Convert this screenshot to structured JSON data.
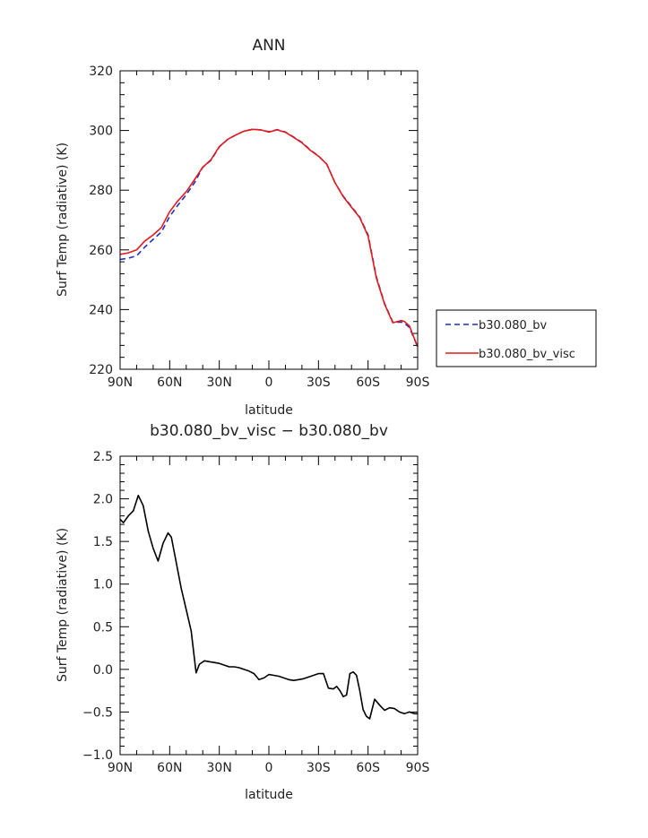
{
  "chart_data": [
    {
      "type": "line",
      "title": "ANN",
      "xlabel": "latitude",
      "ylabel": "Surf Temp (radiative) (K)",
      "xlim": [
        90,
        -90
      ],
      "ylim": [
        220,
        320
      ],
      "x_ticks": [
        90,
        60,
        30,
        0,
        -30,
        -60,
        -90
      ],
      "x_tick_labels": [
        "90N",
        "60N",
        "30N",
        "0",
        "30S",
        "60S",
        "90S"
      ],
      "y_ticks": [
        220,
        240,
        260,
        280,
        300,
        320
      ],
      "y_tick_labels": [
        "220",
        "240",
        "260",
        "280",
        "300",
        "320"
      ],
      "legend_position": "right",
      "series": [
        {
          "name": "b30.080_bv",
          "color": "#1f2fbf",
          "dash": "dashed",
          "x": [
            90,
            85,
            80,
            75,
            70,
            65,
            60,
            55,
            50,
            45,
            40,
            35,
            30,
            25,
            20,
            15,
            10,
            5,
            0,
            -5,
            -10,
            -15,
            -20,
            -25,
            -30,
            -35,
            -40,
            -45,
            -50,
            -55,
            -60,
            -65,
            -70,
            -75,
            -80,
            -82,
            -85,
            -90
          ],
          "y": [
            256.8,
            257.2,
            258.0,
            261.0,
            263.5,
            266.0,
            271.2,
            275.0,
            278.5,
            282.5,
            287.7,
            290.0,
            294.5,
            297.0,
            298.5,
            299.8,
            300.4,
            300.2,
            299.6,
            300.3,
            299.5,
            297.8,
            296.0,
            293.5,
            291.5,
            288.7,
            282.5,
            278.0,
            274.5,
            271.0,
            265.0,
            251.0,
            242.0,
            235.8,
            235.8,
            235.5,
            234.0,
            227.5
          ]
        },
        {
          "name": "b30.080_bv_visc",
          "color": "#e41a1c",
          "dash": "solid",
          "x": [
            90,
            85,
            80,
            75,
            70,
            65,
            60,
            55,
            50,
            45,
            40,
            35,
            30,
            25,
            20,
            15,
            10,
            5,
            0,
            -5,
            -10,
            -15,
            -20,
            -25,
            -30,
            -35,
            -40,
            -45,
            -50,
            -55,
            -60,
            -65,
            -70,
            -75,
            -80,
            -82,
            -85,
            -90
          ],
          "y": [
            258.5,
            259.0,
            260.0,
            263.0,
            265.0,
            267.5,
            272.8,
            276.5,
            279.5,
            283.5,
            287.7,
            290.2,
            294.6,
            297.0,
            298.5,
            299.8,
            300.4,
            300.2,
            299.5,
            300.2,
            299.4,
            297.7,
            295.9,
            293.4,
            291.4,
            288.7,
            282.5,
            277.8,
            274.3,
            270.8,
            264.6,
            250.6,
            241.8,
            235.6,
            236.3,
            236.0,
            234.5,
            227.5
          ]
        }
      ]
    },
    {
      "type": "line",
      "title": "b30.080_bv_visc − b30.080_bv",
      "xlabel": "latitude",
      "ylabel": "Surf Temp (radiative) (K)",
      "xlim": [
        90,
        -90
      ],
      "ylim": [
        -1.0,
        2.5
      ],
      "x_ticks": [
        90,
        60,
        30,
        0,
        -30,
        -60,
        -90
      ],
      "x_tick_labels": [
        "90N",
        "60N",
        "30N",
        "0",
        "30S",
        "60S",
        "90S"
      ],
      "y_ticks": [
        -1.0,
        -0.5,
        0.0,
        0.5,
        1.0,
        1.5,
        2.0,
        2.5
      ],
      "y_tick_labels": [
        "−1.0",
        "−0.5",
        "0.0",
        "0.5",
        "1.0",
        "1.5",
        "2.0",
        "2.5"
      ],
      "series": [
        {
          "color": "#000000",
          "dash": "solid",
          "x": [
            90,
            88,
            85,
            82,
            79,
            76,
            73,
            70,
            67,
            64,
            61,
            59,
            56,
            53,
            50,
            47,
            44,
            42,
            39,
            36,
            33,
            30,
            27,
            24,
            21,
            18,
            15,
            12,
            9,
            6,
            3,
            0,
            -3,
            -6,
            -9,
            -12,
            -15,
            -18,
            -21,
            -24,
            -27,
            -30,
            -33,
            -36,
            -39,
            -41,
            -43,
            -45,
            -47,
            -49,
            -51,
            -53,
            -55,
            -57,
            -59,
            -61,
            -64,
            -67,
            -70,
            -73,
            -76,
            -79,
            -82,
            -85,
            -88,
            -90
          ],
          "y": [
            1.76,
            1.72,
            1.8,
            1.86,
            2.04,
            1.92,
            1.62,
            1.42,
            1.27,
            1.48,
            1.6,
            1.55,
            1.25,
            0.95,
            0.7,
            0.45,
            -0.04,
            0.06,
            0.1,
            0.09,
            0.08,
            0.07,
            0.05,
            0.03,
            0.03,
            0.02,
            0.0,
            -0.02,
            -0.05,
            -0.12,
            -0.1,
            -0.06,
            -0.07,
            -0.08,
            -0.1,
            -0.12,
            -0.13,
            -0.12,
            -0.11,
            -0.09,
            -0.07,
            -0.05,
            -0.05,
            -0.22,
            -0.23,
            -0.2,
            -0.25,
            -0.32,
            -0.3,
            -0.05,
            -0.03,
            -0.07,
            -0.25,
            -0.47,
            -0.55,
            -0.58,
            -0.35,
            -0.42,
            -0.48,
            -0.45,
            -0.46,
            -0.5,
            -0.52,
            -0.5,
            -0.52,
            -0.52
          ]
        }
      ]
    }
  ]
}
